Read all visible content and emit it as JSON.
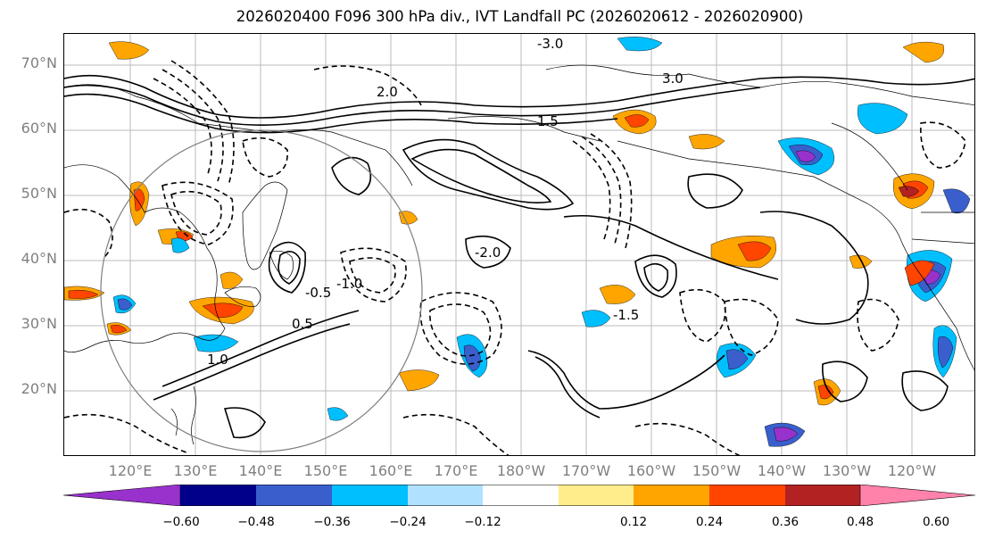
{
  "title": "2026020400 F096 300 hPa div., IVT Landfall PC (2026020612 - 2026020900)",
  "lat_labels": [
    "70°N",
    "60°N",
    "50°N",
    "40°N",
    "30°N",
    "20°N"
  ],
  "lon_labels": [
    "120°E",
    "130°E",
    "140°E",
    "150°E",
    "160°E",
    "170°E",
    "180°W",
    "170°W",
    "160°W",
    "150°W",
    "140°W",
    "130°W",
    "120°W"
  ],
  "contour_labels": [
    "3.0",
    "2.0",
    "1.5",
    "1.0",
    "0.5",
    "-0.5",
    "-1.0",
    "-1.5",
    "-2.0",
    "-3.0"
  ],
  "colorbar": {
    "tick_labels": [
      "−0.60",
      "−0.48",
      "−0.36",
      "−0.24",
      "−0.12",
      "0.12",
      "0.24",
      "0.36",
      "0.48",
      "0.60"
    ],
    "colors": [
      "#9932cc",
      "#00008b",
      "#3a5fcd",
      "#00bfff",
      "#b0e2ff",
      "#ffffff",
      "#ffec8b",
      "#ffa500",
      "#ff4500",
      "#b22222",
      "#ff82ab"
    ]
  },
  "colors": {
    "axis_label": "#7f7f7f",
    "gridline": "#bbbbbb",
    "coastline": "#000000",
    "contour": "#000000"
  }
}
